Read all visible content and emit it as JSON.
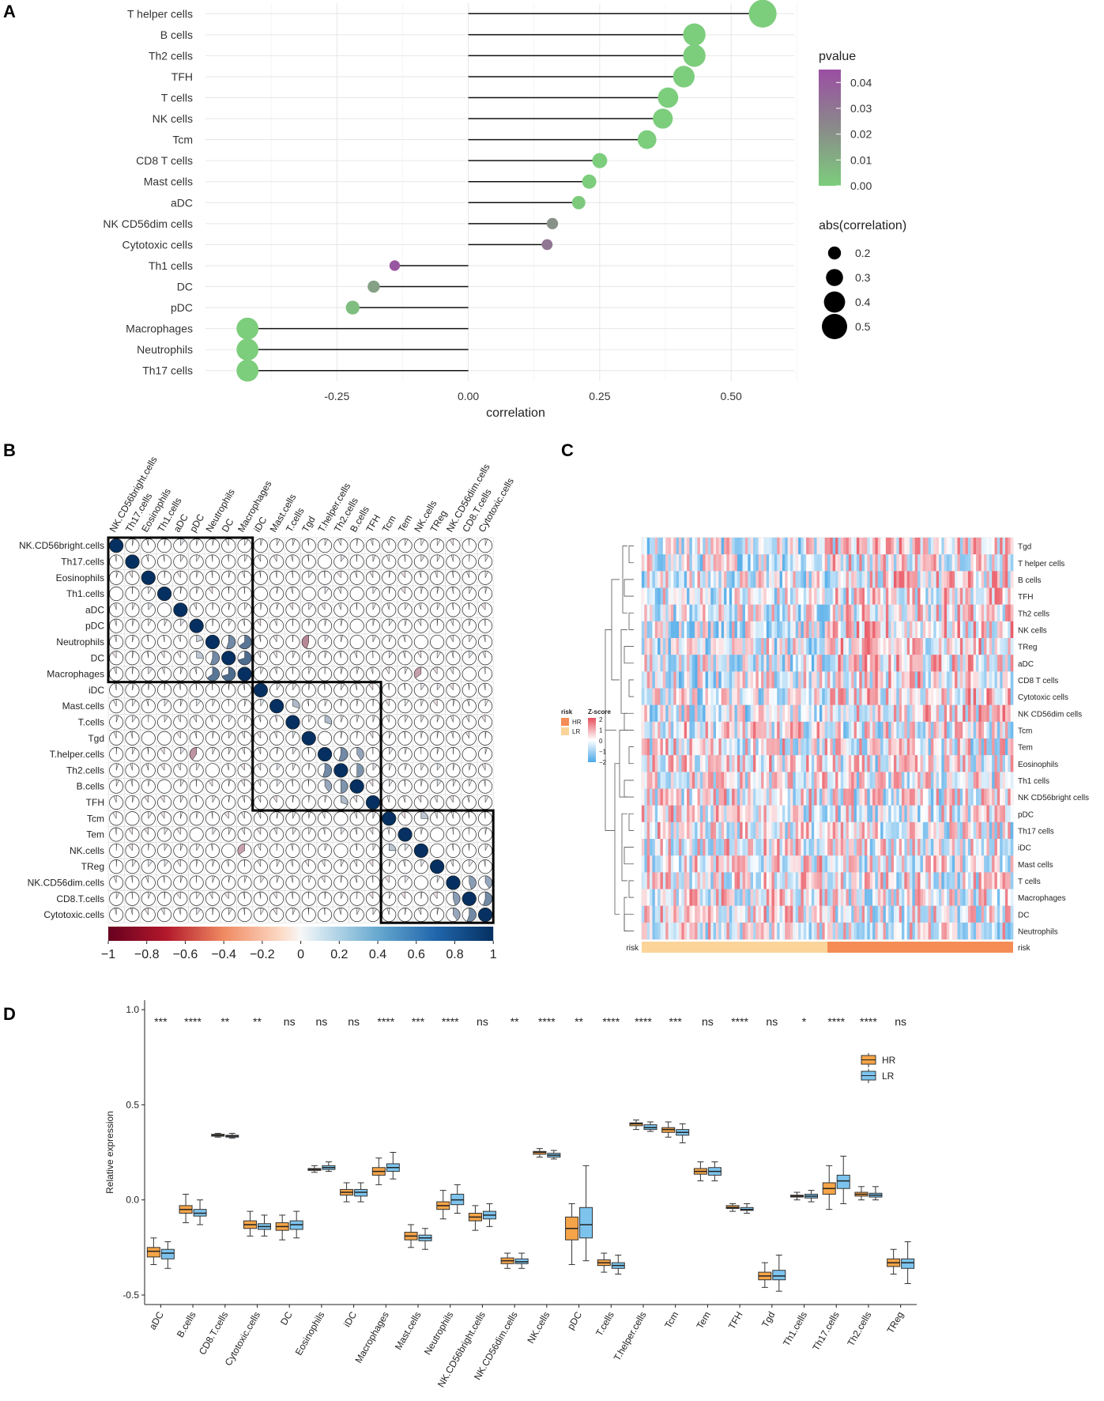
{
  "panels": {
    "a": "A",
    "b": "B",
    "c": "C",
    "d": "D"
  },
  "chart_data": [
    {
      "type": "lollipop",
      "panel": "A",
      "xlabel": "correlation",
      "xlim": [
        -0.5,
        0.62
      ],
      "xticks": [
        "-0.25",
        "0.00",
        "0.25",
        "0.50"
      ],
      "xtick_values": [
        -0.25,
        0,
        0.25,
        0.5
      ],
      "categories": [
        "T helper cells",
        "B cells",
        "Th2 cells",
        "TFH",
        "T cells",
        "NK cells",
        "Tcm",
        "CD8 T cells",
        "Mast cells",
        "aDC",
        "NK CD56dim cells",
        "Cytotoxic cells",
        "Th1 cells",
        "DC",
        "pDC",
        "Macrophages",
        "Neutrophils",
        "Th17 cells"
      ],
      "values": [
        0.56,
        0.43,
        0.43,
        0.41,
        0.38,
        0.37,
        0.34,
        0.25,
        0.23,
        0.21,
        0.16,
        0.15,
        -0.14,
        -0.18,
        -0.22,
        -0.42,
        -0.42,
        -0.42
      ],
      "pvalues": [
        0.0,
        0.0,
        0.0,
        0.0,
        0.0,
        0.0,
        0.0,
        0.0,
        0.0,
        0.001,
        0.02,
        0.03,
        0.042,
        0.015,
        0.005,
        0.0,
        0.0,
        0.0
      ],
      "legend_pvalue": {
        "title": "pvalue",
        "ticks": [
          "0.04",
          "0.03",
          "0.02",
          "0.01",
          "0.00"
        ],
        "tick_values": [
          0.04,
          0.03,
          0.02,
          0.01,
          0.0
        ],
        "range": [
          0,
          0.045
        ],
        "high_color": "#9b4ea3",
        "mid_color": "#8a8a8a",
        "low_color": "#7ccd7c"
      },
      "legend_size": {
        "title": "abs(correlation)",
        "labels": [
          "0.2",
          "0.3",
          "0.4",
          "0.5"
        ],
        "values": [
          0.2,
          0.3,
          0.4,
          0.5
        ]
      }
    },
    {
      "type": "correlation-matrix",
      "panel": "B",
      "labels": [
        "NK.CD56bright.cells",
        "Th17.cells",
        "Eosinophils",
        "Th1.cells",
        "aDC",
        "pDC",
        "Neutrophils",
        "DC",
        "Macrophages",
        "iDC",
        "Mast.cells",
        "T.cells",
        "Tgd",
        "T.helper.cells",
        "Th2.cells",
        "B.cells",
        "TFH",
        "Tcm",
        "Tem",
        "NK.cells",
        "TReg",
        "NK.CD56dim.cells",
        "CD8.T.cells",
        "Cytotoxic.cells"
      ],
      "clusters": [
        [
          0,
          8
        ],
        [
          9,
          16
        ],
        [
          17,
          23
        ]
      ],
      "colorbar_ticks": [
        "−1",
        "−0.8",
        "−0.6",
        "−0.4",
        "−0.2",
        "0",
        "0.2",
        "0.4",
        "0.6",
        "0.8",
        "1"
      ],
      "colorbar_values": [
        -1,
        -0.8,
        -0.6,
        -0.4,
        -0.2,
        0,
        0.2,
        0.4,
        0.6,
        0.8,
        1
      ],
      "neg_color": "#67001f",
      "zero_color": "#f7f7f7",
      "pos_color": "#053061",
      "notable_cells": [
        {
          "row": 6,
          "col": 7,
          "r": 0.55
        },
        {
          "row": 6,
          "col": 8,
          "r": 0.65
        },
        {
          "row": 6,
          "col": 5,
          "r": 0.2
        },
        {
          "row": 7,
          "col": 6,
          "r": 0.55
        },
        {
          "row": 7,
          "col": 8,
          "r": 0.7
        },
        {
          "row": 7,
          "col": 5,
          "r": 0.25
        },
        {
          "row": 8,
          "col": 6,
          "r": 0.65
        },
        {
          "row": 8,
          "col": 7,
          "r": 0.7
        },
        {
          "row": 6,
          "col": 12,
          "r": -0.45
        },
        {
          "row": 13,
          "col": 5,
          "r": -0.4
        },
        {
          "row": 19,
          "col": 8,
          "r": -0.35
        },
        {
          "row": 10,
          "col": 11,
          "r": 0.3
        },
        {
          "row": 11,
          "col": 13,
          "r": 0.3
        },
        {
          "row": 13,
          "col": 14,
          "r": 0.55
        },
        {
          "row": 14,
          "col": 13,
          "r": 0.55
        },
        {
          "row": 14,
          "col": 15,
          "r": 0.5
        },
        {
          "row": 15,
          "col": 14,
          "r": 0.5
        },
        {
          "row": 13,
          "col": 15,
          "r": 0.4
        },
        {
          "row": 15,
          "col": 13,
          "r": 0.4
        },
        {
          "row": 16,
          "col": 14,
          "r": 0.3
        },
        {
          "row": 21,
          "col": 22,
          "r": 0.45
        },
        {
          "row": 22,
          "col": 21,
          "r": 0.45
        },
        {
          "row": 22,
          "col": 23,
          "r": 0.55
        },
        {
          "row": 23,
          "col": 22,
          "r": 0.55
        },
        {
          "row": 21,
          "col": 23,
          "r": 0.4
        },
        {
          "row": 23,
          "col": 21,
          "r": 0.4
        },
        {
          "row": 17,
          "col": 19,
          "r": 0.25
        },
        {
          "row": 19,
          "col": 17,
          "r": 0.25
        },
        {
          "row": 8,
          "col": 19,
          "r": -0.35
        }
      ]
    },
    {
      "type": "heatmap",
      "panel": "C",
      "rows": [
        "Tgd",
        "T helper cells",
        "B cells",
        "TFH",
        "Th2 cells",
        "NK cells",
        "TReg",
        "aDC",
        "CD8 T cells",
        "Cytotoxic cells",
        "NK CD56dim cells",
        "Tcm",
        "Tem",
        "Eosinophils",
        "Th1 cells",
        "NK CD56bright cells",
        "pDC",
        "Th17 cells",
        "iDC",
        "Mast cells",
        "T cells",
        "Macrophages",
        "DC",
        "Neutrophils"
      ],
      "annotation_label": "risk",
      "risk_groups": [
        {
          "name": "LR",
          "fraction": 0.5,
          "color": "#fbd49a"
        },
        {
          "name": "HR",
          "fraction": 0.5,
          "color": "#f58c55"
        }
      ],
      "legend_risk": {
        "title": "risk",
        "items": [
          "HR",
          "LR"
        ]
      },
      "legend_z": {
        "title": "Z-score",
        "ticks": [
          "2",
          "1",
          "0",
          "−1",
          "−2"
        ]
      },
      "high_color": "#e8515d",
      "low_color": "#4aa8e8"
    },
    {
      "type": "boxplot",
      "panel": "D",
      "ylabel": "Relative expression",
      "ylim": [
        -0.55,
        1.05
      ],
      "yticks": [
        "1.0",
        "0.5",
        "0.0",
        "-0.5"
      ],
      "ytick_values": [
        1.0,
        0.5,
        0.0,
        -0.5
      ],
      "categories": [
        "aDC",
        "B.cells",
        "CD8.T.cells",
        "Cytotoxic.cells",
        "DC",
        "Eosinophils",
        "iDC",
        "Macrophages",
        "Mast.cells",
        "Neutrophils",
        "NK.CD56bright.cells",
        "NK.CD56dim.cells",
        "NK.cells",
        "pDC",
        "T.cells",
        "T.helper.cells",
        "Tcm",
        "Tem",
        "TFH",
        "Tgd",
        "Th1.cells",
        "Th17.cells",
        "Th2.cells",
        "TReg"
      ],
      "significance": [
        "***",
        "****",
        "**",
        "**",
        "ns",
        "ns",
        "ns",
        "****",
        "***",
        "****",
        "ns",
        "**",
        "****",
        "**",
        "****",
        "****",
        "***",
        "ns",
        "****",
        "ns",
        "*",
        "****",
        "****",
        "ns"
      ],
      "legend": {
        "items": [
          "HR",
          "LR"
        ],
        "colors": [
          "#f5a447",
          "#7cc4ee"
        ]
      },
      "series": [
        {
          "name": "HR",
          "median": [
            -0.27,
            -0.05,
            0.34,
            -0.13,
            -0.14,
            0.16,
            0.04,
            0.15,
            -0.19,
            -0.03,
            -0.09,
            -0.32,
            0.25,
            -0.15,
            -0.33,
            0.4,
            0.37,
            0.15,
            -0.04,
            -0.4,
            0.02,
            0.06,
            0.03,
            -0.33
          ],
          "q1": [
            -0.3,
            -0.07,
            0.335,
            -0.15,
            -0.16,
            0.155,
            0.025,
            0.13,
            -0.21,
            -0.05,
            -0.11,
            -0.335,
            0.24,
            -0.21,
            -0.345,
            0.39,
            0.355,
            0.135,
            -0.045,
            -0.42,
            0.015,
            0.03,
            0.02,
            -0.35
          ],
          "q3": [
            -0.25,
            -0.03,
            0.345,
            -0.11,
            -0.12,
            0.165,
            0.055,
            0.17,
            -0.17,
            -0.01,
            -0.07,
            -0.305,
            0.255,
            -0.09,
            -0.315,
            0.405,
            0.38,
            0.165,
            -0.03,
            -0.38,
            0.025,
            0.09,
            0.04,
            -0.31
          ],
          "min": [
            -0.34,
            -0.12,
            0.33,
            -0.19,
            -0.21,
            0.145,
            -0.01,
            0.08,
            -0.25,
            -0.1,
            -0.16,
            -0.36,
            0.225,
            -0.34,
            -0.38,
            0.37,
            0.33,
            0.1,
            -0.06,
            -0.46,
            0.0,
            -0.05,
            0.0,
            -0.39
          ],
          "max": [
            -0.2,
            0.03,
            0.35,
            -0.06,
            -0.08,
            0.18,
            0.09,
            0.22,
            -0.13,
            0.05,
            -0.03,
            -0.28,
            0.27,
            -0.02,
            -0.28,
            0.42,
            0.41,
            0.2,
            -0.02,
            -0.33,
            0.04,
            0.18,
            0.07,
            -0.26
          ]
        },
        {
          "name": "LR",
          "median": [
            -0.28,
            -0.07,
            0.335,
            -0.14,
            -0.13,
            0.17,
            0.04,
            0.17,
            -0.2,
            0.0,
            -0.08,
            -0.325,
            0.235,
            -0.13,
            -0.345,
            0.38,
            0.355,
            0.15,
            -0.05,
            -0.4,
            0.02,
            0.1,
            0.025,
            -0.33
          ],
          "q1": [
            -0.31,
            -0.085,
            0.33,
            -0.155,
            -0.155,
            0.16,
            0.02,
            0.15,
            -0.215,
            -0.025,
            -0.1,
            -0.335,
            0.225,
            -0.2,
            -0.36,
            0.37,
            0.34,
            0.13,
            -0.055,
            -0.42,
            0.01,
            0.06,
            0.015,
            -0.36
          ],
          "q3": [
            -0.26,
            -0.05,
            0.34,
            -0.125,
            -0.11,
            0.18,
            0.055,
            0.19,
            -0.185,
            0.03,
            -0.06,
            -0.31,
            0.245,
            -0.04,
            -0.33,
            0.395,
            0.37,
            0.17,
            -0.04,
            -0.37,
            0.03,
            0.13,
            0.035,
            -0.31
          ],
          "min": [
            -0.36,
            -0.13,
            0.325,
            -0.19,
            -0.2,
            0.15,
            -0.01,
            0.11,
            -0.26,
            -0.07,
            -0.14,
            -0.36,
            0.215,
            -0.32,
            -0.39,
            0.36,
            0.3,
            0.1,
            -0.07,
            -0.48,
            -0.01,
            -0.02,
            0.0,
            -0.44
          ],
          "max": [
            -0.22,
            0.0,
            0.35,
            -0.08,
            -0.06,
            0.2,
            0.09,
            0.25,
            -0.15,
            0.08,
            -0.02,
            -0.28,
            0.26,
            0.18,
            -0.29,
            0.41,
            0.4,
            0.2,
            -0.02,
            -0.29,
            0.05,
            0.23,
            0.07,
            -0.22
          ]
        }
      ]
    }
  ]
}
